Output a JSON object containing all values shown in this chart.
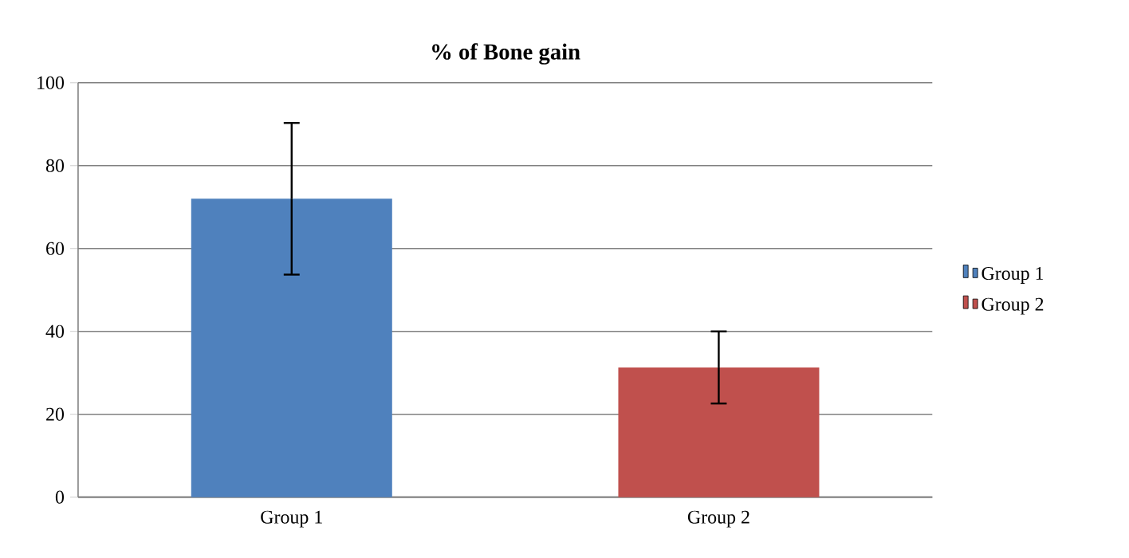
{
  "chart_data": {
    "type": "bar",
    "title": "**% of Bone gain**",
    "categories": [
      "Group 1",
      "Group 2"
    ],
    "series": [
      {
        "name": "Group 1",
        "color": "#4f81bd",
        "values": [
          72,
          null
        ],
        "errors": [
          18.3,
          null
        ]
      },
      {
        "name": "Group 2",
        "color": "#c0504d",
        "values": [
          null,
          31.3
        ],
        "errors": [
          null,
          8.7
        ]
      }
    ],
    "ylim": [
      0,
      100
    ],
    "yticks": [
      0,
      20,
      40,
      60,
      80,
      100
    ],
    "grid": "y",
    "legend": "right"
  }
}
